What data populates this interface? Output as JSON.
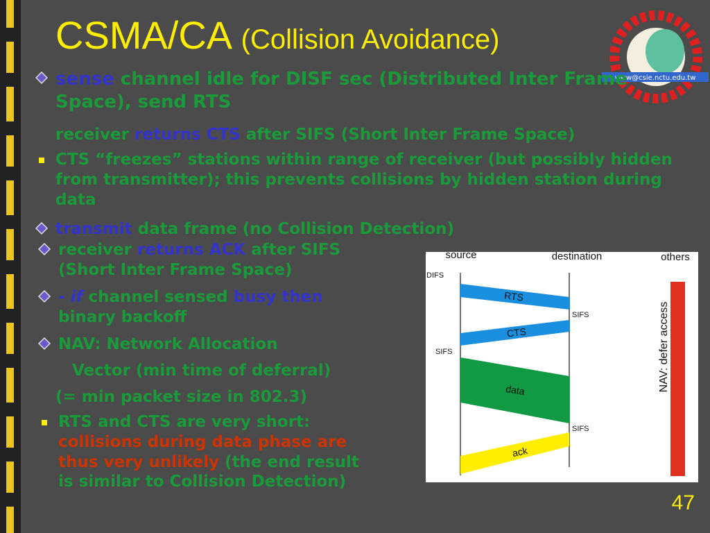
{
  "title": {
    "main": "CSMA/CA",
    "sub": "(Collision Avoidance)"
  },
  "logo_text": "www@csie.nctu.edu.tw",
  "bullets": [
    {
      "marker": "diamond",
      "runs": [
        {
          "text": "sense",
          "color": "#3333cc"
        },
        {
          "text": " channel idle for DISF sec (Distributed Inter Frame Space), send RTS",
          "color": "#1a9a3a"
        }
      ]
    },
    {
      "marker": "none",
      "runs": [
        {
          "text": "receiver ",
          "color": "#1a9a3a"
        },
        {
          "text": "returns CTS",
          "color": "#3333cc"
        },
        {
          "text": " after SIFS (Short Inter Frame Space)",
          "color": "#1a9a3a"
        }
      ]
    },
    {
      "marker": "square",
      "runs": [
        {
          "text": "CTS “freezes” stations within range of receiver (but possibly hidden from transmitter); this prevents collisions by hidden station during data",
          "color": "#1a9a3a"
        }
      ]
    },
    {
      "marker": "diamond",
      "runs": [
        {
          "text": "transmit",
          "color": "#3333cc"
        },
        {
          "text": " data frame (no Collision Detection)",
          "color": "#1a9a3a"
        }
      ]
    },
    {
      "marker": "diamond",
      "runs": [
        {
          "text": "receiver ",
          "color": "#1a9a3a"
        },
        {
          "text": "returns ACK",
          "color": "#3333cc"
        },
        {
          "text": " after SIFS (Short Inter Frame Space)",
          "color": "#1a9a3a"
        }
      ]
    },
    {
      "marker": "diamond",
      "runs": [
        {
          "text": "- ",
          "color": "#3333cc"
        },
        {
          "text": " if",
          "color": "#3333cc",
          "italic": true
        },
        {
          "text": " channel sensed ",
          "color": "#1a9a3a"
        },
        {
          "text": "busy then",
          "color": "#3333cc"
        },
        {
          "text": " binary backoff",
          "color": "#1a9a3a"
        }
      ]
    },
    {
      "marker": "diamond",
      "runs": [
        {
          "text": "NAV: Network Allocation",
          "color": "#1a9a3a"
        }
      ]
    },
    {
      "marker": "none",
      "runs": [
        {
          "text": "Vector (min time of deferral)",
          "color": "#1a9a3a"
        }
      ]
    },
    {
      "marker": "none",
      "runs": [
        {
          "text": "(= min packet size in 802.3)",
          "color": "#1a9a3a"
        }
      ]
    },
    {
      "marker": "square",
      "runs": [
        {
          "text": "RTS and CTS are very short: ",
          "color": "#1a9a3a"
        },
        {
          "text": "collisions during data phase are thus very unlikely",
          "color": "#cc3300"
        },
        {
          "text": " (the end result is similar to Collision Detection)",
          "color": "#1a9a3a"
        }
      ]
    }
  ],
  "diagram": {
    "source": "source",
    "destination": "destination",
    "others": "others",
    "difs": "DIFS",
    "rts": "RTS",
    "cts": "CTS",
    "data": "data",
    "ack": "ack",
    "sifs": [
      "SIFS",
      "SIFS",
      "SIFS"
    ],
    "nav": "NAV: defer access"
  },
  "page_number": "47"
}
